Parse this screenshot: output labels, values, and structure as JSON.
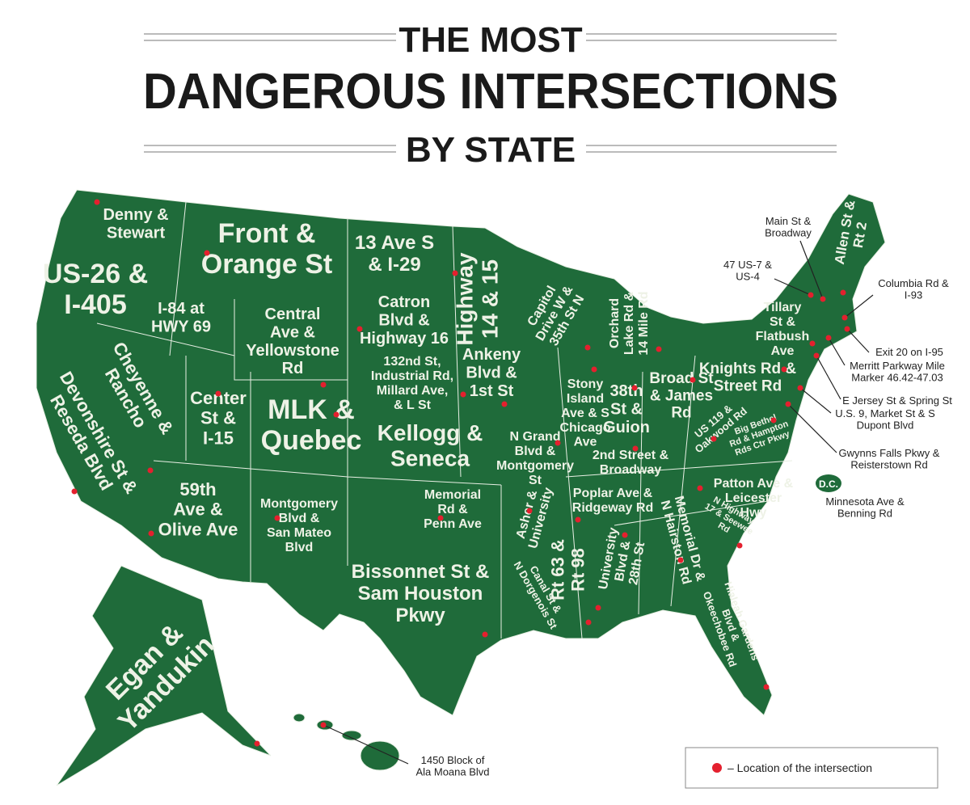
{
  "header": {
    "lines": [
      "THE MOST",
      "DANGEROUS INTERSECTIONS",
      "BY STATE"
    ]
  },
  "labels": [
    [
      "Denny &",
      "Stewart"
    ],
    [
      "US-26 &",
      "I-405"
    ],
    [
      "I-84 at",
      "HWY 69"
    ],
    [
      "Front &",
      "Orange St"
    ],
    [
      "13 Ave S",
      "& I-29"
    ],
    [
      "Highway",
      "14 & 15"
    ],
    [
      "Central",
      "Ave &",
      "Yellowstone",
      "Rd"
    ],
    [
      "Catron",
      "Blvd &",
      "Highway 16"
    ],
    [
      "132nd St,",
      "Industrial Rd,",
      "Millard Ave,",
      "& L St"
    ],
    [
      "Ankeny",
      "Blvd &",
      "1st St"
    ],
    [
      "Capitol",
      "Drive W &",
      "35th St N"
    ],
    [
      "Orchard",
      "Lake Rd &",
      "14 Mile Rd"
    ],
    [
      "Cheyenne &",
      "Rancho"
    ],
    [
      "Devonshire St &",
      "Reseda Blvd"
    ],
    [
      "Center",
      "St &",
      "I-15"
    ],
    [
      "MLK &",
      "Quebec"
    ],
    [
      "Kellogg &",
      "Seneca"
    ],
    [
      "Stony",
      "Island",
      "Ave & S",
      "Chicago",
      "Ave"
    ],
    [
      "38th",
      "St &",
      "Guion"
    ],
    [
      "Broad St",
      "& James",
      "Rd"
    ],
    [
      "Knights Rd &",
      "Street Rd"
    ],
    [
      "Tillary",
      "St &",
      "Flatbush",
      "Ave"
    ],
    [
      "47 US-7 &",
      "US-4"
    ],
    [
      "Main St &",
      "Broadway"
    ],
    [
      "Allen St &",
      "Rt 2"
    ],
    [
      "Columbia Rd &",
      "I-93"
    ],
    [
      "Exit 20 on I-95"
    ],
    [
      "Merritt Parkway Mile",
      "Marker 46.42-47.03"
    ],
    [
      "E Jersey St & Spring St"
    ],
    [
      "U.S. 9, Market St & S",
      "Dupont Blvd"
    ],
    [
      "Gwynns Falls Pkwy &",
      "Reisterstown Rd"
    ],
    [
      "Minnesota Ave &",
      "Benning Rd"
    ],
    [
      "US 119 &",
      "Oakwood Rd"
    ],
    [
      "Big Bethel",
      "Rd & Hampton",
      "Rds Ctr Pkwy"
    ],
    [
      "2nd Street &",
      "Broadway"
    ],
    [
      "N Grand",
      "Blvd &",
      "Montgomery",
      "St"
    ],
    [
      "Poplar Ave &",
      "Ridgeway Rd"
    ],
    [
      "Patton Ave &",
      "Leicester",
      "Hwy"
    ],
    [
      "N Highway",
      "17 & Seewee",
      "Rd"
    ],
    [
      "59th",
      "Ave &",
      "Olive Ave"
    ],
    [
      "Montgomery",
      "Blvd &",
      "San Mateo",
      "Blvd"
    ],
    [
      "Memorial",
      "Rd &",
      "Penn Ave"
    ],
    [
      "Asher &",
      "University"
    ],
    [
      "Rt 63 &",
      "Rt 98"
    ],
    [
      "University",
      "Blvd &",
      "28th St"
    ],
    [
      "Memorial Dr &",
      "N Hairston Rd"
    ],
    [
      "Canal St &",
      "N Dorgenois St"
    ],
    [
      "Bissonnet St &",
      "Sam Houston",
      "Pkwy"
    ],
    [
      "Hialeah Gardens",
      "Blvd &",
      "Okeechobee Rd"
    ],
    [
      "Egan &",
      "Yandukin"
    ],
    [
      "1450 Block of",
      "Ala Moana Blvd"
    ]
  ],
  "dc_badge": "D.C.",
  "legend": "– Location of the intersection"
}
